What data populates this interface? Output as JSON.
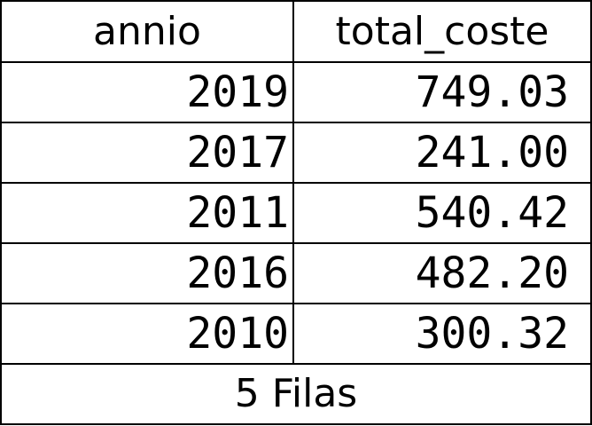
{
  "table": {
    "columns": [
      "annio",
      "total_coste"
    ],
    "rows": [
      [
        "2019",
        "749.03"
      ],
      [
        "2017",
        "241.00"
      ],
      [
        "2011",
        "540.42"
      ],
      [
        "2016",
        "482.20"
      ],
      [
        "2010",
        "300.32"
      ]
    ],
    "footer": "5 Filas"
  },
  "colors": {
    "text": "#000000",
    "border": "#000000",
    "background": "#ffffff"
  }
}
